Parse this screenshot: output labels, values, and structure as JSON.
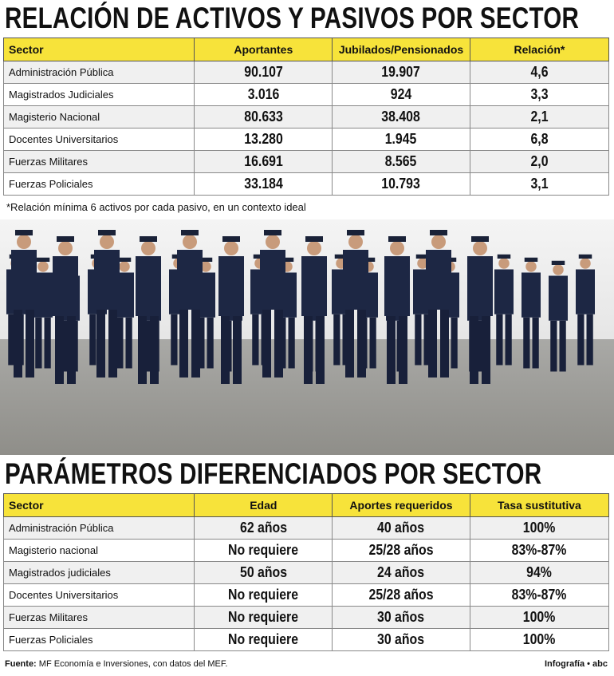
{
  "section1": {
    "title": "RELACIÓN DE ACTIVOS Y PASIVOS POR SECTOR",
    "table": {
      "headers": [
        "Sector",
        "Aportantes",
        "Jubilados/Pensionados",
        "Relación*"
      ],
      "rows": [
        [
          "Administración Pública",
          "90.107",
          "19.907",
          "4,6"
        ],
        [
          "Magistrados Judiciales",
          "3.016",
          "924",
          "3,3"
        ],
        [
          "Magisterio Nacional",
          "80.633",
          "38.408",
          "2,1"
        ],
        [
          "Docentes Universitarios",
          "13.280",
          "1.945",
          "6,8"
        ],
        [
          "Fuerzas Militares",
          "16.691",
          "8.565",
          "2,0"
        ],
        [
          "Fuerzas Policiales",
          "33.184",
          "10.793",
          "3,1"
        ]
      ]
    },
    "note": "*Relación mínima 6 activos por cada pasivo, en un contexto ideal"
  },
  "section2": {
    "title": "PARÁMETROS DIFERENCIADOS POR SECTOR",
    "table": {
      "headers": [
        "Sector",
        "Edad",
        "Aportes requeridos",
        "Tasa sustitutiva"
      ],
      "rows": [
        [
          "Administración Pública",
          "62 años",
          "40 años",
          "100%"
        ],
        [
          "Magisterio nacional",
          "No requiere",
          "25/28 años",
          "83%-87%"
        ],
        [
          "Magistrados judiciales",
          "50 años",
          "24 años",
          "94%"
        ],
        [
          "Docentes Universitarios",
          "No requiere",
          "25/28 años",
          "83%-87%"
        ],
        [
          "Fuerzas Militares",
          "No requiere",
          "30 años",
          "100%"
        ],
        [
          "Fuerzas Policiales",
          "No requiere",
          "30 años",
          "100%"
        ]
      ]
    }
  },
  "footer": {
    "source_label": "Fuente:",
    "source": "MF Economía e Inversiones, con datos del MEF.",
    "brand": "Infografía • abc"
  }
}
